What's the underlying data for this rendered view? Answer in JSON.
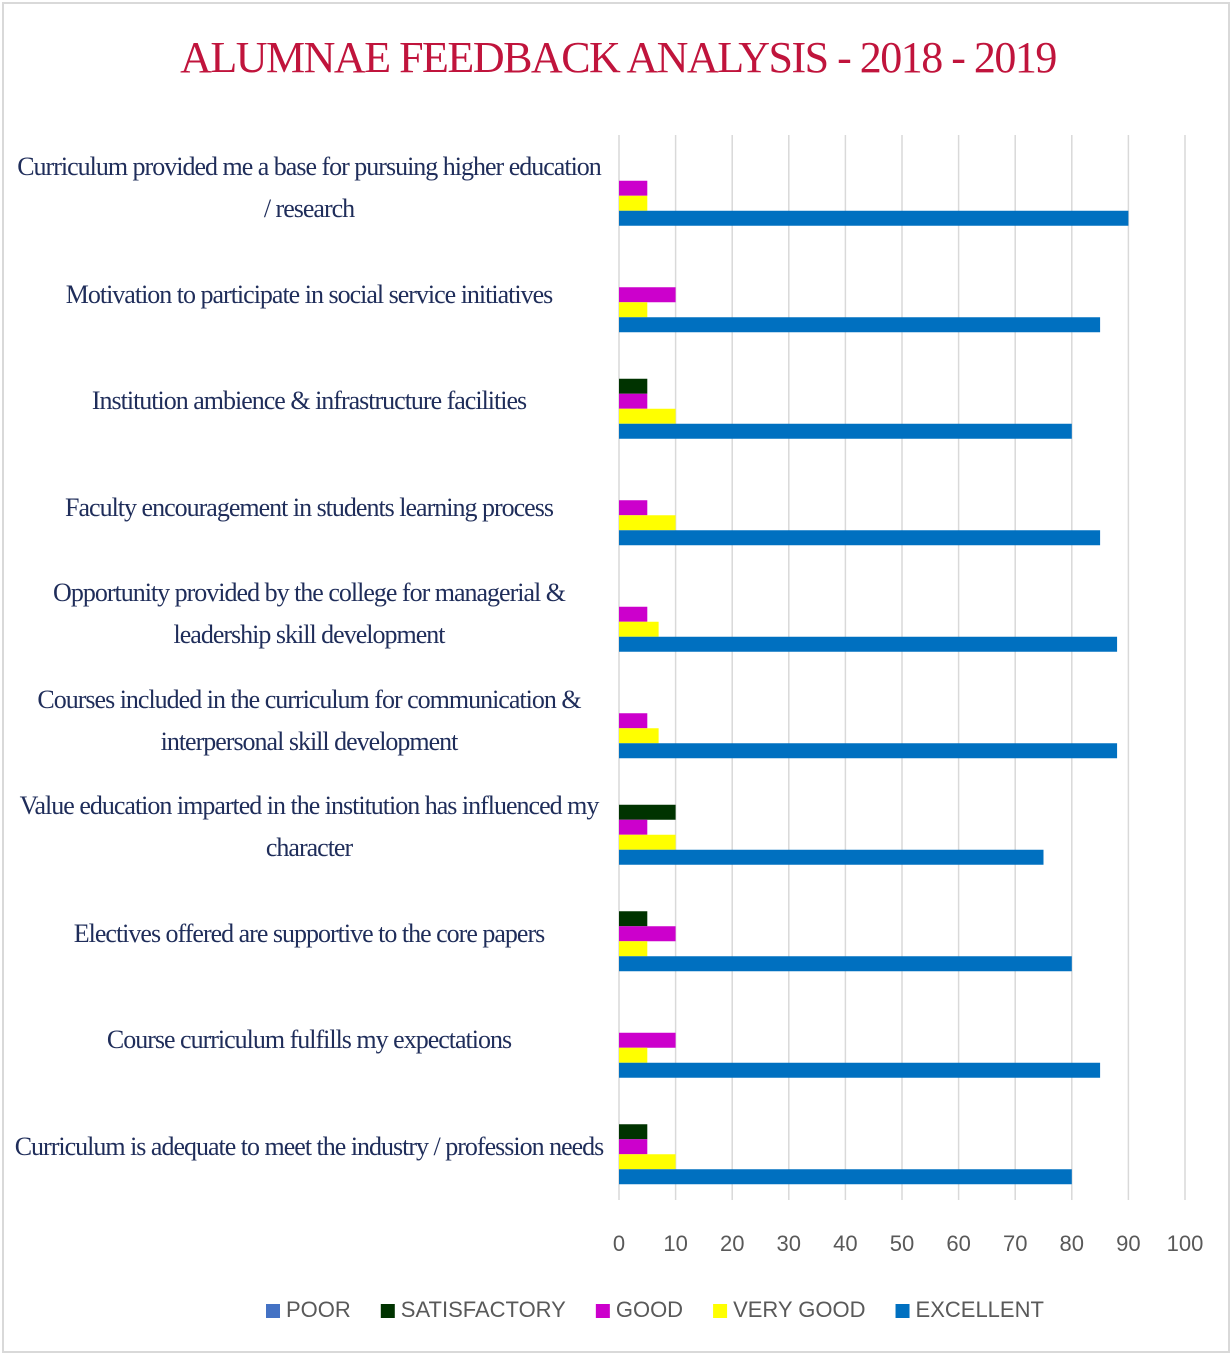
{
  "chart_data": {
    "type": "hbar",
    "title": "ALUMNAE FEEDBACK ANALYSIS - 2018 - 2019",
    "categories": [
      "Curriculum provided me a base for pursuing higher education / research",
      "Motivation to participate in social service initiatives",
      "Institution ambience & infrastructure facilities",
      "Faculty encouragement in students learning process",
      "Opportunity provided by the college for managerial & leadership skill development",
      "Courses included in the curriculum for communication & interpersonal skill development",
      "Value education imparted in the institution has influenced my character",
      "Electives offered are supportive to the core papers",
      "Course curriculum fulfills my expectations",
      "Curriculum is adequate to meet the industry / profession needs"
    ],
    "series": [
      {
        "name": "POOR",
        "color": "#4472c4",
        "values": [
          0,
          0,
          0,
          0,
          0,
          0,
          0,
          0,
          0,
          0
        ]
      },
      {
        "name": "SATISFACTORY",
        "color": "#003300",
        "values": [
          0,
          0,
          5,
          0,
          0,
          0,
          10,
          5,
          0,
          5
        ]
      },
      {
        "name": "GOOD",
        "color": "#cc00cc",
        "values": [
          5,
          10,
          5,
          5,
          5,
          5,
          5,
          10,
          10,
          5
        ]
      },
      {
        "name": "VERY GOOD",
        "color": "#ffff00",
        "values": [
          5,
          5,
          10,
          10,
          7,
          7,
          10,
          5,
          5,
          10
        ]
      },
      {
        "name": "EXCELLENT",
        "color": "#0070c0",
        "values": [
          90,
          85,
          80,
          85,
          88,
          88,
          75,
          80,
          85,
          80
        ]
      }
    ],
    "xlim": [
      0,
      100
    ],
    "xticks": [
      0,
      10,
      20,
      30,
      40,
      50,
      60,
      70,
      80,
      90,
      100
    ],
    "grid": true,
    "legend": "bottom"
  }
}
